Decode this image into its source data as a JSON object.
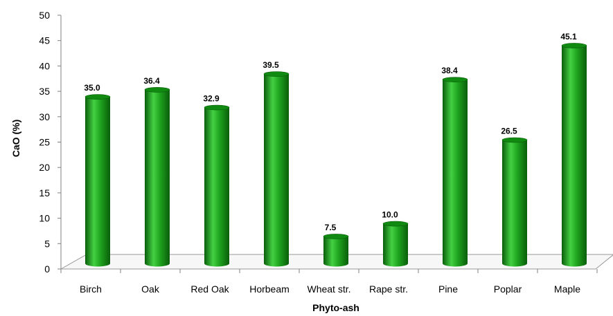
{
  "chart_data": {
    "type": "bar",
    "title": "",
    "xlabel": "Phyto-ash",
    "ylabel": "CaO (%)",
    "categories": [
      "Birch",
      "Oak",
      "Red Oak",
      "Horbeam",
      "Wheat str.",
      "Rape str.",
      "Pine",
      "Poplar",
      "Maple"
    ],
    "values": [
      35.0,
      36.4,
      32.9,
      39.5,
      7.5,
      10.0,
      38.4,
      26.5,
      45.1
    ],
    "data_labels": [
      "35.0",
      "36.4",
      "32.9",
      "39.5",
      "7.5",
      "10.0",
      "38.4",
      "26.5",
      "45.1"
    ],
    "ylim": [
      0,
      50
    ],
    "yticks": [
      "0",
      "5",
      "10",
      "15",
      "20",
      "25",
      "30",
      "35",
      "40",
      "45",
      "50"
    ],
    "grid": false,
    "legend": "none",
    "style": "3d-cylinder",
    "colors": {
      "bar_dark": "#0a5e0a",
      "bar_mid": "#1fa51f",
      "bar_light": "#44d044",
      "bar_top": "#118a11",
      "axis": "#999999"
    }
  }
}
